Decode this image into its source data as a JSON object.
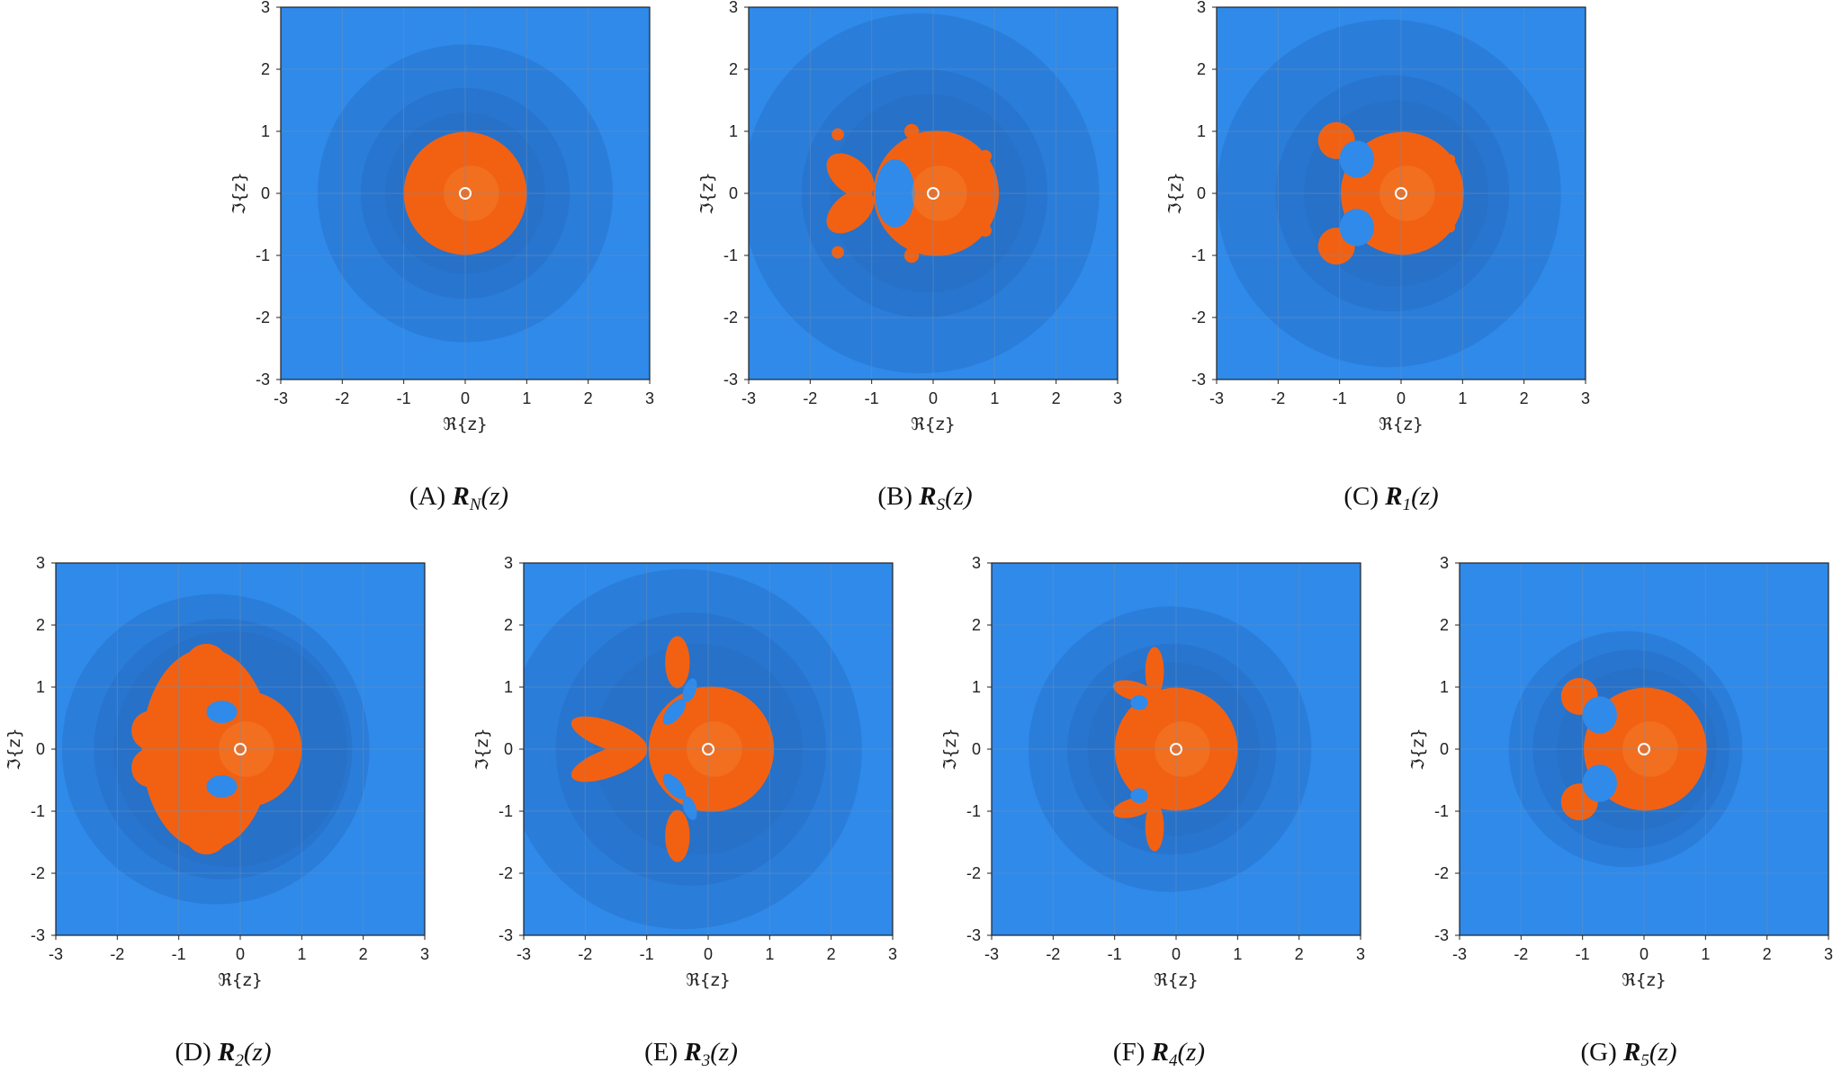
{
  "colors": {
    "blue_outer": "#2F8AEA",
    "blue_mid": "#2B7DDA",
    "blue_inner": "#2770C6",
    "orange": "#F26112",
    "orange_center": "#F58A3C",
    "grid": "#6a8fb8"
  },
  "axis": {
    "x_label": "ℜ{z}",
    "y_label": "ℑ{z}",
    "ticks": [
      "-3",
      "-2",
      "-1",
      "0",
      "1",
      "2",
      "3"
    ]
  },
  "panels": [
    {
      "id": "A",
      "prefix": "(A)",
      "fn": "R",
      "sub": "N",
      "arg": "(z)"
    },
    {
      "id": "B",
      "prefix": "(B)",
      "fn": "R",
      "sub": "S",
      "arg": "(z)"
    },
    {
      "id": "C",
      "prefix": "(C)",
      "fn": "R",
      "sub": "1",
      "arg": "(z)"
    },
    {
      "id": "D",
      "prefix": "(D)",
      "fn": "R",
      "sub": "2",
      "arg": "(z)"
    },
    {
      "id": "E",
      "prefix": "(E)",
      "fn": "R",
      "sub": "3",
      "arg": "(z)"
    },
    {
      "id": "F",
      "prefix": "(F)",
      "fn": "R",
      "sub": "4",
      "arg": "(z)"
    },
    {
      "id": "G",
      "prefix": "(G)",
      "fn": "R",
      "sub": "5",
      "arg": "(z)"
    }
  ]
}
